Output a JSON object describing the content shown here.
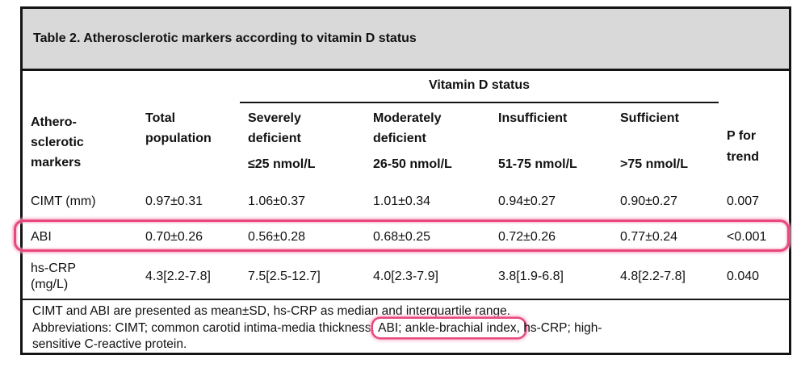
{
  "colors": {
    "title-bg": "#d9d9d9",
    "border": "#141414",
    "highlight": "#e9487b",
    "highlight-glow": "#f5aec8"
  },
  "table": {
    "title": "Table 2. Atherosclerotic markers according to vitamin D status",
    "spanner_label": "Vitamin D status",
    "columns": [
      {
        "id": "markers",
        "lines": [
          "Athero-",
          "sclerotic",
          "markers"
        ]
      },
      {
        "id": "total-population",
        "lines": [
          "Total",
          "population"
        ]
      },
      {
        "id": "severely-deficient",
        "lines": [
          "Severely",
          "deficient"
        ],
        "range": "≤25 nmol/L"
      },
      {
        "id": "moderately-deficient",
        "lines": [
          "Moderately",
          "deficient"
        ],
        "range": "26-50 nmol/L"
      },
      {
        "id": "insufficient",
        "lines": [
          "Insufficient"
        ],
        "range": "51-75 nmol/L"
      },
      {
        "id": "sufficient",
        "lines": [
          "Sufficient"
        ],
        "range": ">75 nmol/L"
      },
      {
        "id": "p-for-trend",
        "lines": [
          "P for",
          "trend"
        ]
      }
    ],
    "rows": [
      {
        "marker_lines": [
          "CIMT (mm)"
        ],
        "values": [
          "0.97±0.31",
          "1.06±0.37",
          "1.01±0.34",
          "0.94±0.27",
          "0.90±0.27",
          "0.007"
        ],
        "highlighted": false
      },
      {
        "marker_lines": [
          "ABI"
        ],
        "values": [
          "0.70±0.26",
          "0.56±0.28",
          "0.68±0.25",
          "0.72±0.26",
          "0.77±0.24",
          "<0.001"
        ],
        "highlighted": true
      },
      {
        "marker_lines": [
          "hs-CRP",
          "(mg/L)"
        ],
        "values": [
          "4.3[2.2-7.8]",
          "7.5[2.5-12.7]",
          "4.0[2.3-7.9]",
          "3.8[1.9-6.8]",
          "4.8[2.2-7.8]",
          "0.040"
        ],
        "highlighted": false
      }
    ]
  },
  "footnotes": {
    "line1": "CIMT and ABI are presented as mean±SD, hs-CRP as median and interquartile range.",
    "line2_before": "Abbreviations: CIMT; common carotid intima-media thickness, ",
    "line2_highlight": "ABI; ankle-brachial index,",
    "line2_after": " hs-CRP; high-",
    "line3": "sensitive C-reactive protein."
  }
}
